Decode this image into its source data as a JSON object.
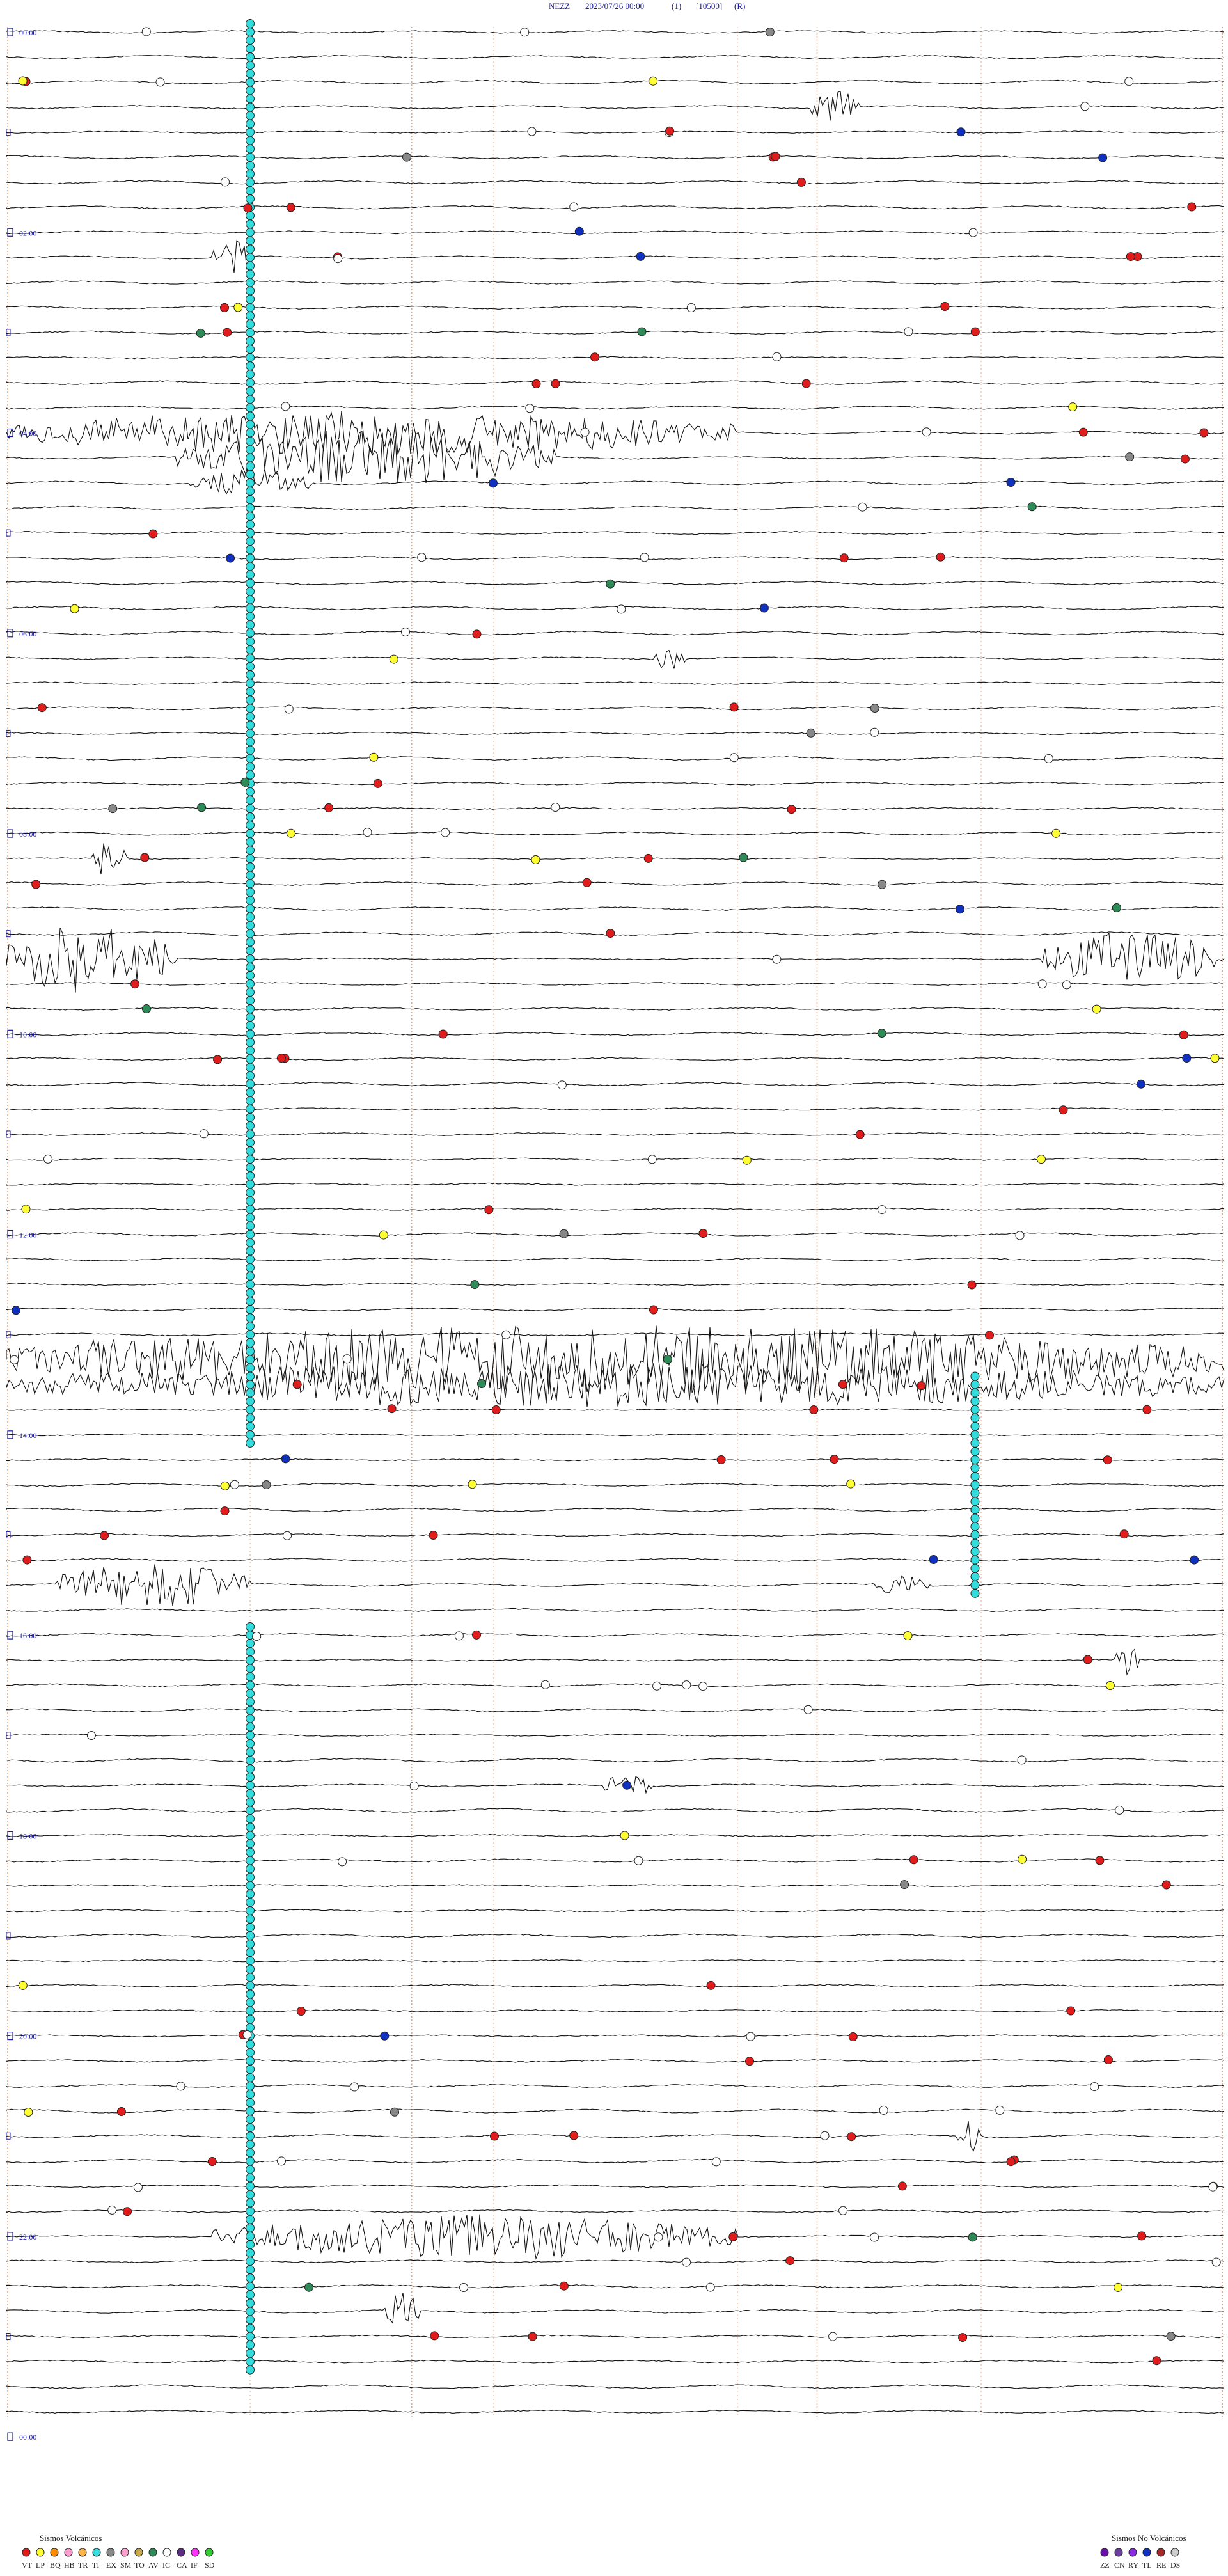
{
  "header": {
    "station": "NEZZ",
    "date_time": "2023/07/26 00:00",
    "filter": "(1)",
    "scale": "[10500]",
    "mode": "(R)"
  },
  "legend": {
    "volcanic_title": "Sismos Volcánicos",
    "nonvolcanic_title": "Sismos No Volcánicos",
    "volcanic_items": [
      {
        "code": "VT",
        "color": "#e01c1c"
      },
      {
        "code": "LP",
        "color": "#ffff33"
      },
      {
        "code": "BQ",
        "color": "#ff8c00"
      },
      {
        "code": "HB",
        "color": "#ff9fd0"
      },
      {
        "code": "TR",
        "color": "#ffb347"
      },
      {
        "code": "TI",
        "color": "#33dddd"
      },
      {
        "code": "EX",
        "color": "#888888"
      },
      {
        "code": "SM",
        "color": "#ff9fd0"
      },
      {
        "code": "TO",
        "color": "#c7a84a"
      },
      {
        "code": "AV",
        "color": "#2e8b57"
      },
      {
        "code": "IC",
        "color": "#ffffff"
      },
      {
        "code": "CA",
        "color": "#5a2d82"
      },
      {
        "code": "IF",
        "color": "#ff33ff"
      },
      {
        "code": "SD",
        "color": "#33cc33"
      }
    ],
    "nonvolcanic_items": [
      {
        "code": "ZZ",
        "color": "#6a0dad"
      },
      {
        "code": "CN",
        "color": "#6b3fa0"
      },
      {
        "code": "RY",
        "color": "#8a2be2"
      },
      {
        "code": "TL",
        "color": "#1030c0"
      },
      {
        "code": "RE",
        "color": "#a52a2a"
      },
      {
        "code": "DS",
        "color": "#cccccc"
      }
    ]
  },
  "chart_data": {
    "type": "helicorder",
    "hour_labels": [
      "00:00",
      "02:00",
      "04:00",
      "06:00",
      "08:00",
      "10:00",
      "12:00",
      "14:00",
      "16:00",
      "18:00",
      "20:00",
      "22:00",
      "00:00"
    ],
    "time_range_hours": [
      0,
      24
    ],
    "lines_per_hour": 4,
    "minutes_per_line": 15,
    "bursts": [
      {
        "line": 3,
        "x0": 0.66,
        "x1": 0.7,
        "amp": 2
      },
      {
        "line": 9,
        "x0": 0.17,
        "x1": 0.2,
        "amp": 3
      },
      {
        "line": 16,
        "x0": 0.0,
        "x1": 0.6,
        "amp": 2.5
      },
      {
        "line": 17,
        "x0": 0.14,
        "x1": 0.45,
        "amp": 3
      },
      {
        "line": 18,
        "x0": 0.15,
        "x1": 0.25,
        "amp": 1.5
      },
      {
        "line": 25,
        "x0": 0.53,
        "x1": 0.56,
        "amp": 1.3
      },
      {
        "line": 33,
        "x0": 0.07,
        "x1": 0.1,
        "amp": 2.5
      },
      {
        "line": 37,
        "x0": 0.0,
        "x1": 0.14,
        "amp": 4
      },
      {
        "line": 37,
        "x0": 0.85,
        "x1": 1.0,
        "amp": 3
      },
      {
        "line": 53,
        "x0": 0.0,
        "x1": 1.0,
        "amp": 4
      },
      {
        "line": 54,
        "x0": 0.0,
        "x1": 1.0,
        "amp": 2.5
      },
      {
        "line": 62,
        "x0": 0.04,
        "x1": 0.2,
        "amp": 2.5
      },
      {
        "line": 62,
        "x0": 0.71,
        "x1": 0.76,
        "amp": 1.3
      },
      {
        "line": 65,
        "x0": 0.91,
        "x1": 0.93,
        "amp": 2
      },
      {
        "line": 70,
        "x0": 0.49,
        "x1": 0.53,
        "amp": 1.5
      },
      {
        "line": 88,
        "x0": 0.17,
        "x1": 0.6,
        "amp": 2.5
      },
      {
        "line": 91,
        "x0": 0.31,
        "x1": 0.34,
        "amp": 2
      },
      {
        "line": 84,
        "x0": 0.78,
        "x1": 0.8,
        "amp": 2
      }
    ],
    "event_columns": [
      {
        "x": 0.2,
        "line_from": 0,
        "line_to": 56,
        "type": "TI"
      },
      {
        "x": 0.2,
        "line_from": 64,
        "line_to": 93,
        "type": "TI"
      },
      {
        "x": 0.795,
        "line_from": 54,
        "line_to": 62,
        "type": "TI"
      }
    ],
    "event_density": 6
  }
}
